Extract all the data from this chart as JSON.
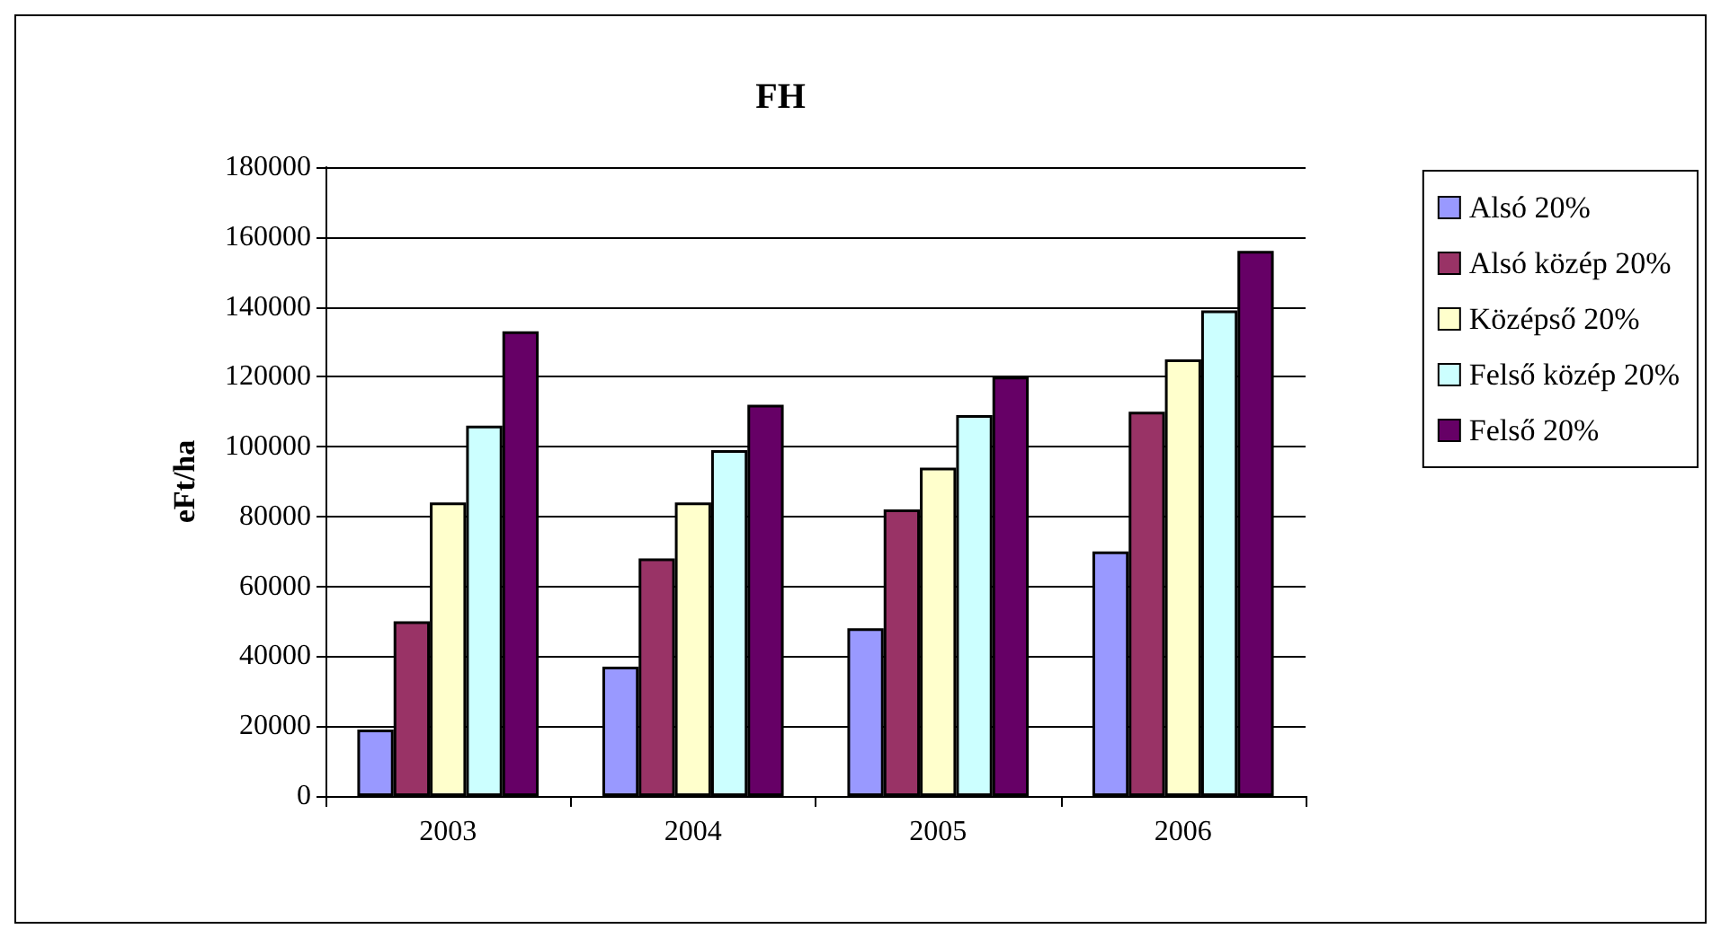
{
  "chart_data": {
    "type": "bar",
    "title": "FH",
    "ylabel": "eFt/ha",
    "categories": [
      "2003",
      "2004",
      "2005",
      "2006"
    ],
    "series": [
      {
        "name": "Alsó 20%",
        "color": "#9999ff",
        "values": [
          19000,
          37000,
          48000,
          70000
        ]
      },
      {
        "name": "Alsó közép 20%",
        "color": "#993366",
        "values": [
          50000,
          68000,
          82000,
          110000
        ]
      },
      {
        "name": "Középső 20%",
        "color": "#ffffcc",
        "values": [
          84000,
          84000,
          94000,
          125000
        ]
      },
      {
        "name": "Felső közép 20%",
        "color": "#ccffff",
        "values": [
          106000,
          99000,
          109000,
          139000
        ]
      },
      {
        "name": "Felső 20%",
        "color": "#660066",
        "values": [
          133000,
          112000,
          120000,
          156000
        ]
      }
    ],
    "ylim": [
      0,
      180000
    ],
    "yticks": [
      0,
      20000,
      40000,
      60000,
      80000,
      100000,
      120000,
      140000,
      160000,
      180000
    ],
    "grid": "y",
    "legend": "right"
  }
}
